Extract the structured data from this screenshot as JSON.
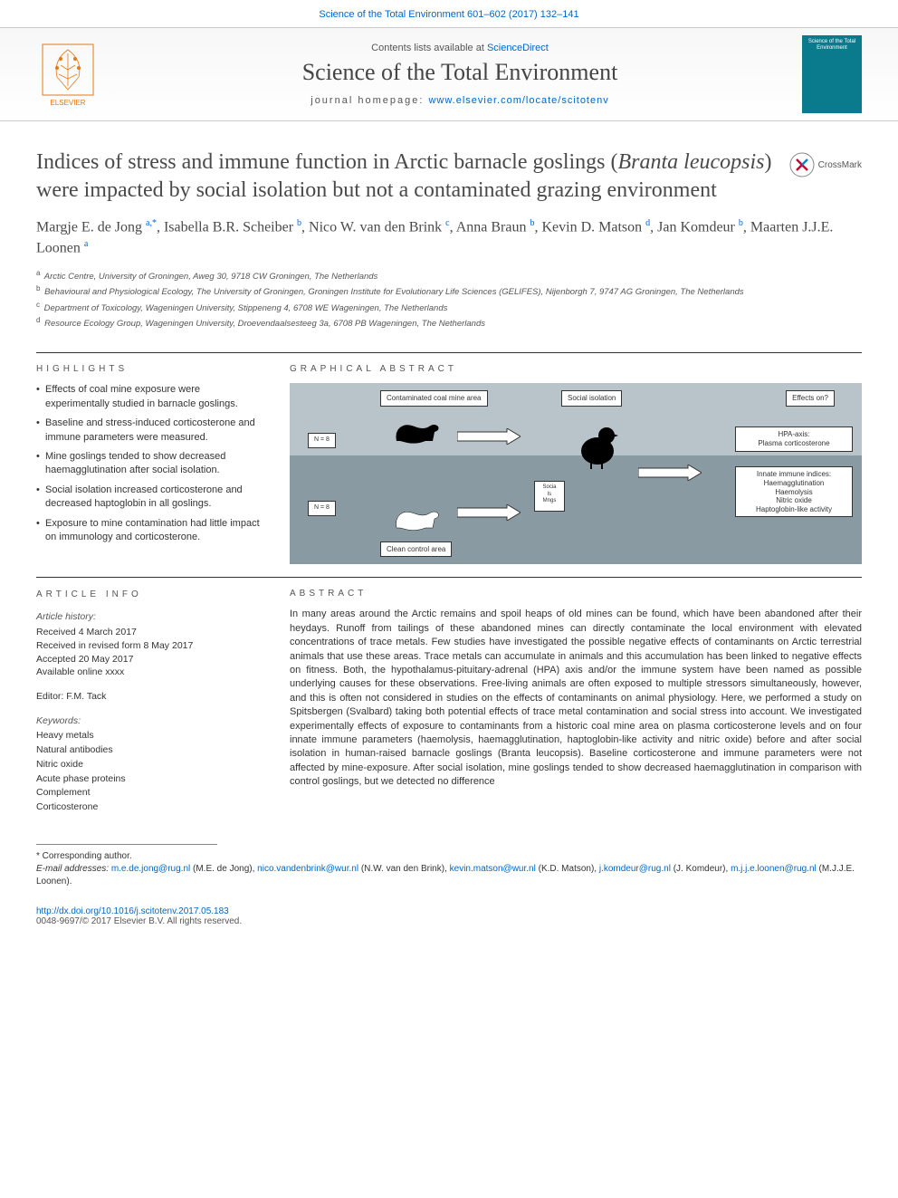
{
  "top_citation": "Science of the Total Environment 601–602 (2017) 132–141",
  "header": {
    "contents_pre": "Contents lists available at ",
    "contents_link": "ScienceDirect",
    "journal_title": "Science of the Total Environment",
    "homepage_pre": "journal homepage: ",
    "homepage_link": "www.elsevier.com/locate/scitotenv",
    "publisher": "ELSEVIER",
    "cover_text": "Science of the Total Environment"
  },
  "crossmark": "CrossMark",
  "article": {
    "title_html": "Indices of stress and immune function in Arctic barnacle goslings (<em>Branta leucopsis</em>) were impacted by social isolation but not a contaminated grazing environment",
    "authors_html": "Margje E. de Jong <sup>a,*</sup>, Isabella B.R. Scheiber <sup>b</sup>, Nico W. van den Brink <sup>c</sup>, Anna Braun <sup>b</sup>, Kevin D. Matson <sup>d</sup>, Jan Komdeur <sup>b</sup>, Maarten J.J.E. Loonen <sup>a</sup>",
    "affiliations": [
      {
        "sup": "a",
        "text": "Arctic Centre, University of Groningen, Aweg 30, 9718 CW Groningen, The Netherlands"
      },
      {
        "sup": "b",
        "text": "Behavioural and Physiological Ecology, The University of Groningen, Groningen Institute for Evolutionary Life Sciences (GELIFES), Nijenborgh 7, 9747 AG Groningen, The Netherlands"
      },
      {
        "sup": "c",
        "text": "Department of Toxicology, Wageningen University, Stippeneng 4, 6708 WE Wageningen, The Netherlands"
      },
      {
        "sup": "d",
        "text": "Resource Ecology Group, Wageningen University, Droevendaalsesteeg 3a, 6708 PB Wageningen, The Netherlands"
      }
    ]
  },
  "highlights": {
    "label": "HIGHLIGHTS",
    "items": [
      "Effects of coal mine exposure were experimentally studied in barnacle goslings.",
      "Baseline and stress-induced corticosterone and immune parameters were measured.",
      "Mine goslings tended to show decreased haemagglutination after social isolation.",
      "Social isolation increased corticosterone and decreased haptoglobin in all goslings.",
      "Exposure to mine contamination had little impact on immunology and corticosterone."
    ]
  },
  "graphical_abstract": {
    "label": "GRAPHICAL ABSTRACT",
    "box_mine": "Contaminated coal mine area",
    "box_control": "Clean control area",
    "box_isolation": "Social isolation",
    "box_effects": "Effects on?",
    "box_hpa": "HPA-axis:\nPlasma corticosterone",
    "box_immune": "Innate immune indices:\nHaemagglutination\nHaemolysis\nNitric oxide\nHaptoglobin-like activity",
    "n_label_top": "N = 8",
    "n_label_bottom": "N = 8",
    "pen_label": "Socia\nls Mngs",
    "background_sky": "#b8c4ca",
    "background_ground": "#8a9aa2",
    "box_bg": "#ffffff",
    "box_border": "#333333",
    "goose_colors": {
      "mine": "#000000",
      "control": "#ffffff",
      "chick": "#000000"
    }
  },
  "article_info": {
    "label": "ARTICLE INFO",
    "history_label": "Article history:",
    "received": "Received 4 March 2017",
    "revised": "Received in revised form 8 May 2017",
    "accepted": "Accepted 20 May 2017",
    "online": "Available online xxxx",
    "editor_label": "Editor: F.M. Tack",
    "keywords_label": "Keywords:",
    "keywords": [
      "Heavy metals",
      "Natural antibodies",
      "Nitric oxide",
      "Acute phase proteins",
      "Complement",
      "Corticosterone"
    ]
  },
  "abstract": {
    "label": "ABSTRACT",
    "text": "In many areas around the Arctic remains and spoil heaps of old mines can be found, which have been abandoned after their heydays. Runoff from tailings of these abandoned mines can directly contaminate the local environment with elevated concentrations of trace metals. Few studies have investigated the possible negative effects of contaminants on Arctic terrestrial animals that use these areas. Trace metals can accumulate in animals and this accumulation has been linked to negative effects on fitness. Both, the hypothalamus-pituitary-adrenal (HPA) axis and/or the immune system have been named as possible underlying causes for these observations. Free-living animals are often exposed to multiple stressors simultaneously, however, and this is often not considered in studies on the effects of contaminants on animal physiology. Here, we performed a study on Spitsbergen (Svalbard) taking both potential effects of trace metal contamination and social stress into account. We investigated experimentally effects of exposure to contaminants from a historic coal mine area on plasma corticosterone levels and on four innate immune parameters (haemolysis, haemagglutination, haptoglobin-like activity and nitric oxide) before and after social isolation in human-raised barnacle goslings (Branta leucopsis). Baseline corticosterone and immune parameters were not affected by mine-exposure. After social isolation, mine goslings tended to show decreased haemagglutination in comparison with control goslings, but we detected no difference"
  },
  "footnote": {
    "corresp": "* Corresponding author.",
    "emails_label": "E-mail addresses: ",
    "emails_html": "<a>m.e.de.jong@rug.nl</a> (M.E. de Jong), <a>nico.vandenbrink@wur.nl</a> (N.W. van den Brink), <a>kevin.matson@wur.nl</a> (K.D. Matson), <a>j.komdeur@rug.nl</a> (J. Komdeur), <a>m.j.j.e.loonen@rug.nl</a> (M.J.J.E. Loonen)."
  },
  "doi": {
    "link": "http://dx.doi.org/10.1016/j.scitotenv.2017.05.183",
    "issn": "0048-9697/© 2017 Elsevier B.V. All rights reserved."
  },
  "colors": {
    "link": "#0066cc",
    "text": "#333333",
    "muted": "#555555",
    "elsevier_orange": "#e67817",
    "cover_bg": "#0a7b8c",
    "rule": "#333333"
  },
  "typography": {
    "body_fontsize": 13,
    "journal_title_fontsize": 26,
    "article_title_fontsize": 24,
    "authors_fontsize": 16,
    "abstract_fontsize": 11,
    "small_fontsize": 10
  }
}
